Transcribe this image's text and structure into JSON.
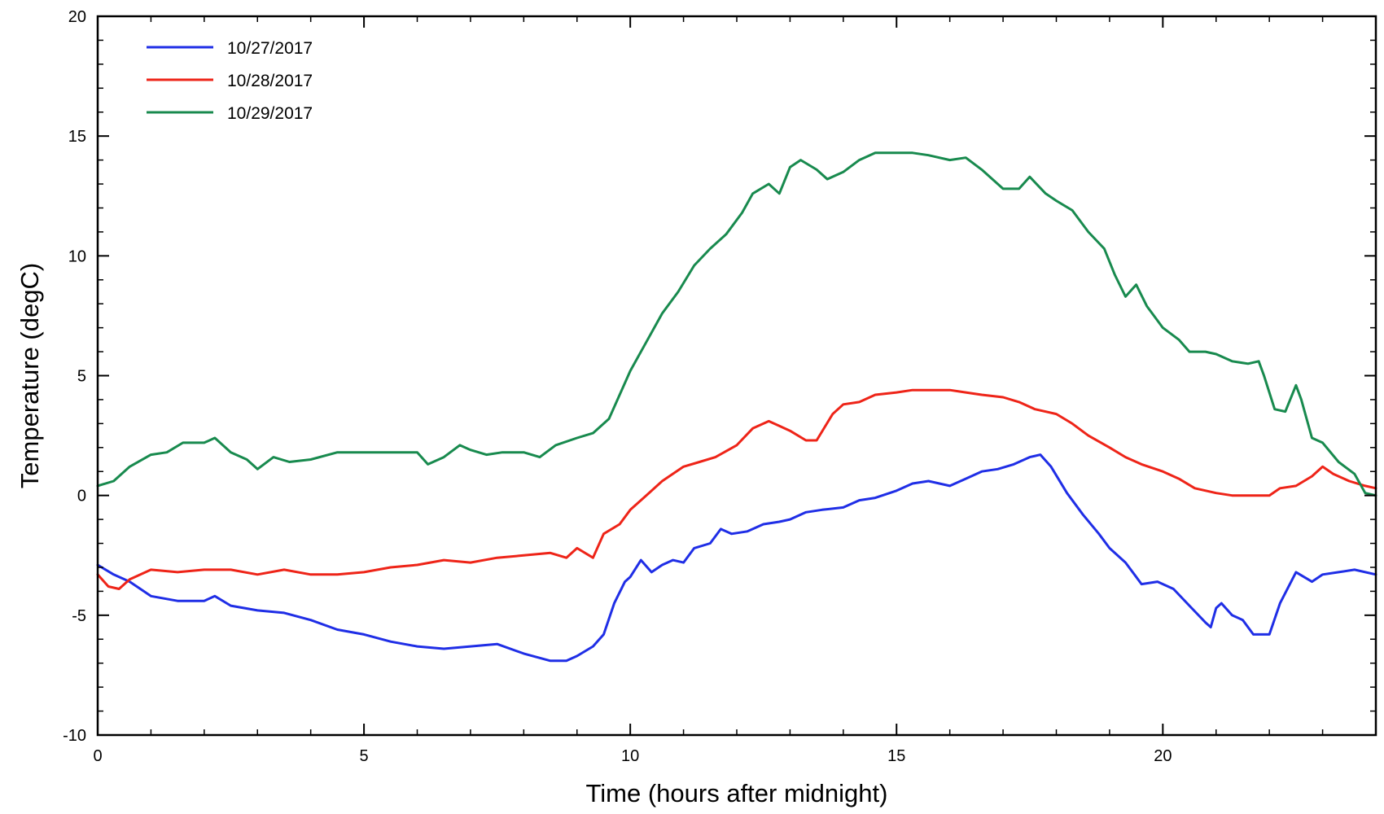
{
  "chart_data": {
    "type": "line",
    "title": "",
    "xlabel": "Time (hours after midnight)",
    "ylabel": "Temperature (degC)",
    "xlim": [
      0,
      24
    ],
    "ylim": [
      -10,
      20
    ],
    "x_ticks": [
      0,
      5,
      10,
      15,
      20
    ],
    "y_ticks": [
      -10,
      -5,
      0,
      5,
      10,
      15,
      20
    ],
    "x_tick_labels": [
      "0",
      "5",
      "10",
      "15",
      "20"
    ],
    "y_tick_labels": [
      "-10",
      "-5",
      "0",
      "5",
      "10",
      "15",
      "20"
    ],
    "grid": false,
    "legend_position": "top-left",
    "series": [
      {
        "name": "10/27/2017",
        "color": "#1f2ee6",
        "points": [
          [
            0,
            -2.9
          ],
          [
            0.3,
            -3.3
          ],
          [
            0.6,
            -3.6
          ],
          [
            1.0,
            -4.2
          ],
          [
            1.5,
            -4.4
          ],
          [
            2.0,
            -4.4
          ],
          [
            2.2,
            -4.2
          ],
          [
            2.5,
            -4.6
          ],
          [
            3.0,
            -4.8
          ],
          [
            3.5,
            -4.9
          ],
          [
            4.0,
            -5.2
          ],
          [
            4.5,
            -5.6
          ],
          [
            5.0,
            -5.8
          ],
          [
            5.5,
            -6.1
          ],
          [
            6.0,
            -6.3
          ],
          [
            6.5,
            -6.4
          ],
          [
            7.0,
            -6.3
          ],
          [
            7.5,
            -6.2
          ],
          [
            8.0,
            -6.6
          ],
          [
            8.5,
            -6.9
          ],
          [
            8.8,
            -6.9
          ],
          [
            9.0,
            -6.7
          ],
          [
            9.3,
            -6.3
          ],
          [
            9.5,
            -5.8
          ],
          [
            9.7,
            -4.5
          ],
          [
            9.9,
            -3.6
          ],
          [
            10.0,
            -3.4
          ],
          [
            10.2,
            -2.7
          ],
          [
            10.4,
            -3.2
          ],
          [
            10.6,
            -2.9
          ],
          [
            10.8,
            -2.7
          ],
          [
            11.0,
            -2.8
          ],
          [
            11.2,
            -2.2
          ],
          [
            11.5,
            -2.0
          ],
          [
            11.7,
            -1.4
          ],
          [
            11.9,
            -1.6
          ],
          [
            12.2,
            -1.5
          ],
          [
            12.5,
            -1.2
          ],
          [
            12.8,
            -1.1
          ],
          [
            13.0,
            -1.0
          ],
          [
            13.3,
            -0.7
          ],
          [
            13.6,
            -0.6
          ],
          [
            14.0,
            -0.5
          ],
          [
            14.3,
            -0.2
          ],
          [
            14.6,
            -0.1
          ],
          [
            15.0,
            0.2
          ],
          [
            15.3,
            0.5
          ],
          [
            15.6,
            0.6
          ],
          [
            16.0,
            0.4
          ],
          [
            16.3,
            0.7
          ],
          [
            16.6,
            1.0
          ],
          [
            16.9,
            1.1
          ],
          [
            17.2,
            1.3
          ],
          [
            17.5,
            1.6
          ],
          [
            17.7,
            1.7
          ],
          [
            17.9,
            1.2
          ],
          [
            18.2,
            0.1
          ],
          [
            18.5,
            -0.8
          ],
          [
            18.8,
            -1.6
          ],
          [
            19.0,
            -2.2
          ],
          [
            19.3,
            -2.8
          ],
          [
            19.6,
            -3.7
          ],
          [
            19.9,
            -3.6
          ],
          [
            20.2,
            -3.9
          ],
          [
            20.5,
            -4.6
          ],
          [
            20.8,
            -5.3
          ],
          [
            20.9,
            -5.5
          ],
          [
            21.0,
            -4.7
          ],
          [
            21.1,
            -4.5
          ],
          [
            21.3,
            -5.0
          ],
          [
            21.5,
            -5.2
          ],
          [
            21.7,
            -5.8
          ],
          [
            22.0,
            -5.8
          ],
          [
            22.2,
            -4.5
          ],
          [
            22.5,
            -3.2
          ],
          [
            22.8,
            -3.6
          ],
          [
            23.0,
            -3.3
          ],
          [
            23.3,
            -3.2
          ],
          [
            23.6,
            -3.1
          ],
          [
            24.0,
            -3.3
          ]
        ]
      },
      {
        "name": "10/28/2017",
        "color": "#ee2418",
        "points": [
          [
            0,
            -3.3
          ],
          [
            0.2,
            -3.8
          ],
          [
            0.4,
            -3.9
          ],
          [
            0.6,
            -3.5
          ],
          [
            1.0,
            -3.1
          ],
          [
            1.5,
            -3.2
          ],
          [
            2.0,
            -3.1
          ],
          [
            2.5,
            -3.1
          ],
          [
            3.0,
            -3.3
          ],
          [
            3.5,
            -3.1
          ],
          [
            4.0,
            -3.3
          ],
          [
            4.5,
            -3.3
          ],
          [
            5.0,
            -3.2
          ],
          [
            5.5,
            -3.0
          ],
          [
            6.0,
            -2.9
          ],
          [
            6.5,
            -2.7
          ],
          [
            7.0,
            -2.8
          ],
          [
            7.5,
            -2.6
          ],
          [
            8.0,
            -2.5
          ],
          [
            8.5,
            -2.4
          ],
          [
            8.8,
            -2.6
          ],
          [
            9.0,
            -2.2
          ],
          [
            9.3,
            -2.6
          ],
          [
            9.5,
            -1.6
          ],
          [
            9.8,
            -1.2
          ],
          [
            10.0,
            -0.6
          ],
          [
            10.3,
            0.0
          ],
          [
            10.6,
            0.6
          ],
          [
            11.0,
            1.2
          ],
          [
            11.3,
            1.4
          ],
          [
            11.6,
            1.6
          ],
          [
            12.0,
            2.1
          ],
          [
            12.3,
            2.8
          ],
          [
            12.6,
            3.1
          ],
          [
            12.8,
            2.9
          ],
          [
            13.0,
            2.7
          ],
          [
            13.3,
            2.3
          ],
          [
            13.5,
            2.3
          ],
          [
            13.8,
            3.4
          ],
          [
            14.0,
            3.8
          ],
          [
            14.3,
            3.9
          ],
          [
            14.6,
            4.2
          ],
          [
            15.0,
            4.3
          ],
          [
            15.3,
            4.4
          ],
          [
            15.6,
            4.4
          ],
          [
            16.0,
            4.4
          ],
          [
            16.3,
            4.3
          ],
          [
            16.6,
            4.2
          ],
          [
            17.0,
            4.1
          ],
          [
            17.3,
            3.9
          ],
          [
            17.6,
            3.6
          ],
          [
            18.0,
            3.4
          ],
          [
            18.3,
            3.0
          ],
          [
            18.6,
            2.5
          ],
          [
            19.0,
            2.0
          ],
          [
            19.3,
            1.6
          ],
          [
            19.6,
            1.3
          ],
          [
            20.0,
            1.0
          ],
          [
            20.3,
            0.7
          ],
          [
            20.6,
            0.3
          ],
          [
            21.0,
            0.1
          ],
          [
            21.3,
            0.0
          ],
          [
            21.6,
            0.0
          ],
          [
            22.0,
            0.0
          ],
          [
            22.2,
            0.3
          ],
          [
            22.5,
            0.4
          ],
          [
            22.8,
            0.8
          ],
          [
            23.0,
            1.2
          ],
          [
            23.2,
            0.9
          ],
          [
            23.5,
            0.6
          ],
          [
            23.8,
            0.4
          ],
          [
            24.0,
            0.3
          ]
        ]
      },
      {
        "name": "10/29/2017",
        "color": "#188a4e",
        "points": [
          [
            0,
            0.4
          ],
          [
            0.3,
            0.6
          ],
          [
            0.6,
            1.2
          ],
          [
            1.0,
            1.7
          ],
          [
            1.3,
            1.8
          ],
          [
            1.6,
            2.2
          ],
          [
            2.0,
            2.2
          ],
          [
            2.2,
            2.4
          ],
          [
            2.5,
            1.8
          ],
          [
            2.8,
            1.5
          ],
          [
            3.0,
            1.1
          ],
          [
            3.3,
            1.6
          ],
          [
            3.6,
            1.4
          ],
          [
            4.0,
            1.5
          ],
          [
            4.5,
            1.8
          ],
          [
            5.0,
            1.8
          ],
          [
            5.5,
            1.8
          ],
          [
            6.0,
            1.8
          ],
          [
            6.2,
            1.3
          ],
          [
            6.5,
            1.6
          ],
          [
            6.8,
            2.1
          ],
          [
            7.0,
            1.9
          ],
          [
            7.3,
            1.7
          ],
          [
            7.6,
            1.8
          ],
          [
            8.0,
            1.8
          ],
          [
            8.3,
            1.6
          ],
          [
            8.6,
            2.1
          ],
          [
            9.0,
            2.4
          ],
          [
            9.3,
            2.6
          ],
          [
            9.6,
            3.2
          ],
          [
            10.0,
            5.2
          ],
          [
            10.3,
            6.4
          ],
          [
            10.6,
            7.6
          ],
          [
            10.9,
            8.5
          ],
          [
            11.2,
            9.6
          ],
          [
            11.5,
            10.3
          ],
          [
            11.8,
            10.9
          ],
          [
            12.1,
            11.8
          ],
          [
            12.3,
            12.6
          ],
          [
            12.6,
            13.0
          ],
          [
            12.8,
            12.6
          ],
          [
            13.0,
            13.7
          ],
          [
            13.2,
            14.0
          ],
          [
            13.5,
            13.6
          ],
          [
            13.7,
            13.2
          ],
          [
            14.0,
            13.5
          ],
          [
            14.3,
            14.0
          ],
          [
            14.6,
            14.3
          ],
          [
            15.0,
            14.3
          ],
          [
            15.3,
            14.3
          ],
          [
            15.6,
            14.2
          ],
          [
            16.0,
            14.0
          ],
          [
            16.3,
            14.1
          ],
          [
            16.6,
            13.6
          ],
          [
            17.0,
            12.8
          ],
          [
            17.3,
            12.8
          ],
          [
            17.5,
            13.3
          ],
          [
            17.8,
            12.6
          ],
          [
            18.0,
            12.3
          ],
          [
            18.3,
            11.9
          ],
          [
            18.6,
            11.0
          ],
          [
            18.9,
            10.3
          ],
          [
            19.1,
            9.2
          ],
          [
            19.3,
            8.3
          ],
          [
            19.5,
            8.8
          ],
          [
            19.7,
            7.9
          ],
          [
            20.0,
            7.0
          ],
          [
            20.3,
            6.5
          ],
          [
            20.5,
            6.0
          ],
          [
            20.8,
            6.0
          ],
          [
            21.0,
            5.9
          ],
          [
            21.3,
            5.6
          ],
          [
            21.6,
            5.5
          ],
          [
            21.8,
            5.6
          ],
          [
            21.9,
            5.0
          ],
          [
            22.1,
            3.6
          ],
          [
            22.3,
            3.5
          ],
          [
            22.5,
            4.6
          ],
          [
            22.6,
            4.0
          ],
          [
            22.8,
            2.4
          ],
          [
            23.0,
            2.2
          ],
          [
            23.3,
            1.4
          ],
          [
            23.6,
            0.9
          ],
          [
            23.8,
            0.1
          ],
          [
            24.0,
            0.0
          ]
        ]
      }
    ]
  }
}
